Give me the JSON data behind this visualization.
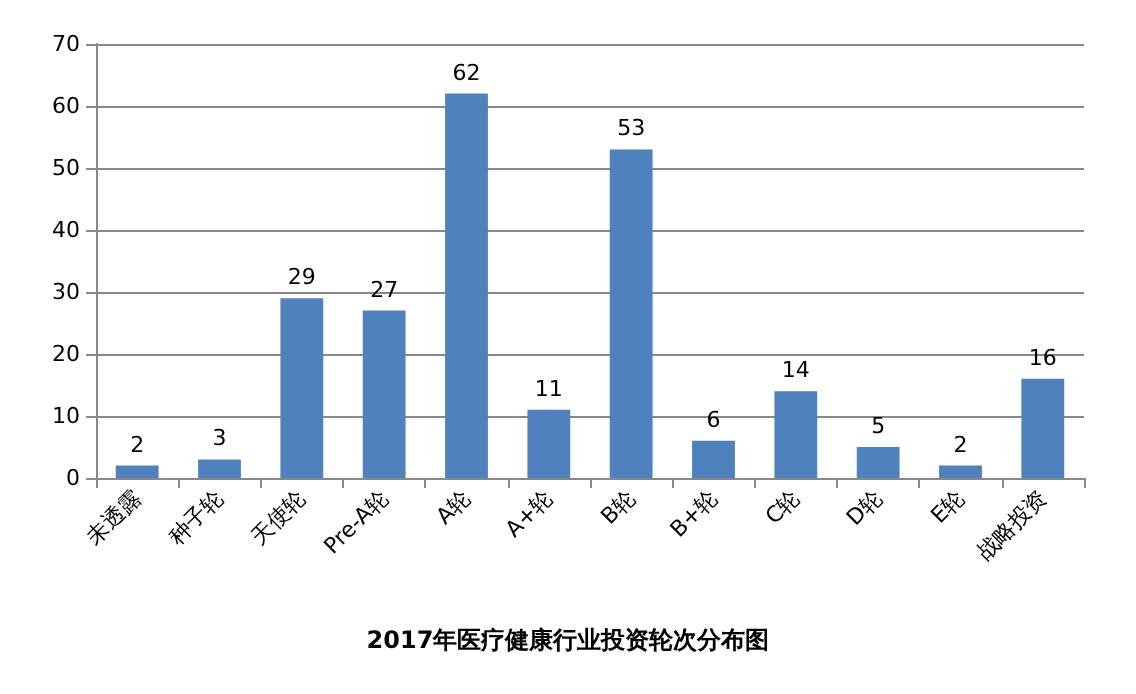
{
  "chart_data": {
    "type": "bar",
    "title": "2017年医疗健康行业投资轮次分布图",
    "categories": [
      "未透露",
      "种子轮",
      "天使轮",
      "Pre-A轮",
      "A轮",
      "A+轮",
      "B轮",
      "B+轮",
      "C轮",
      "D轮",
      "E轮",
      "战略投资"
    ],
    "values": [
      2,
      3,
      29,
      27,
      62,
      11,
      53,
      6,
      14,
      5,
      2,
      16
    ],
    "color": "#4f81bd",
    "ylim": [
      0,
      70
    ],
    "yticks": [
      0,
      10,
      20,
      30,
      40,
      50,
      60,
      70
    ],
    "grid": "y",
    "data_labels": true
  }
}
